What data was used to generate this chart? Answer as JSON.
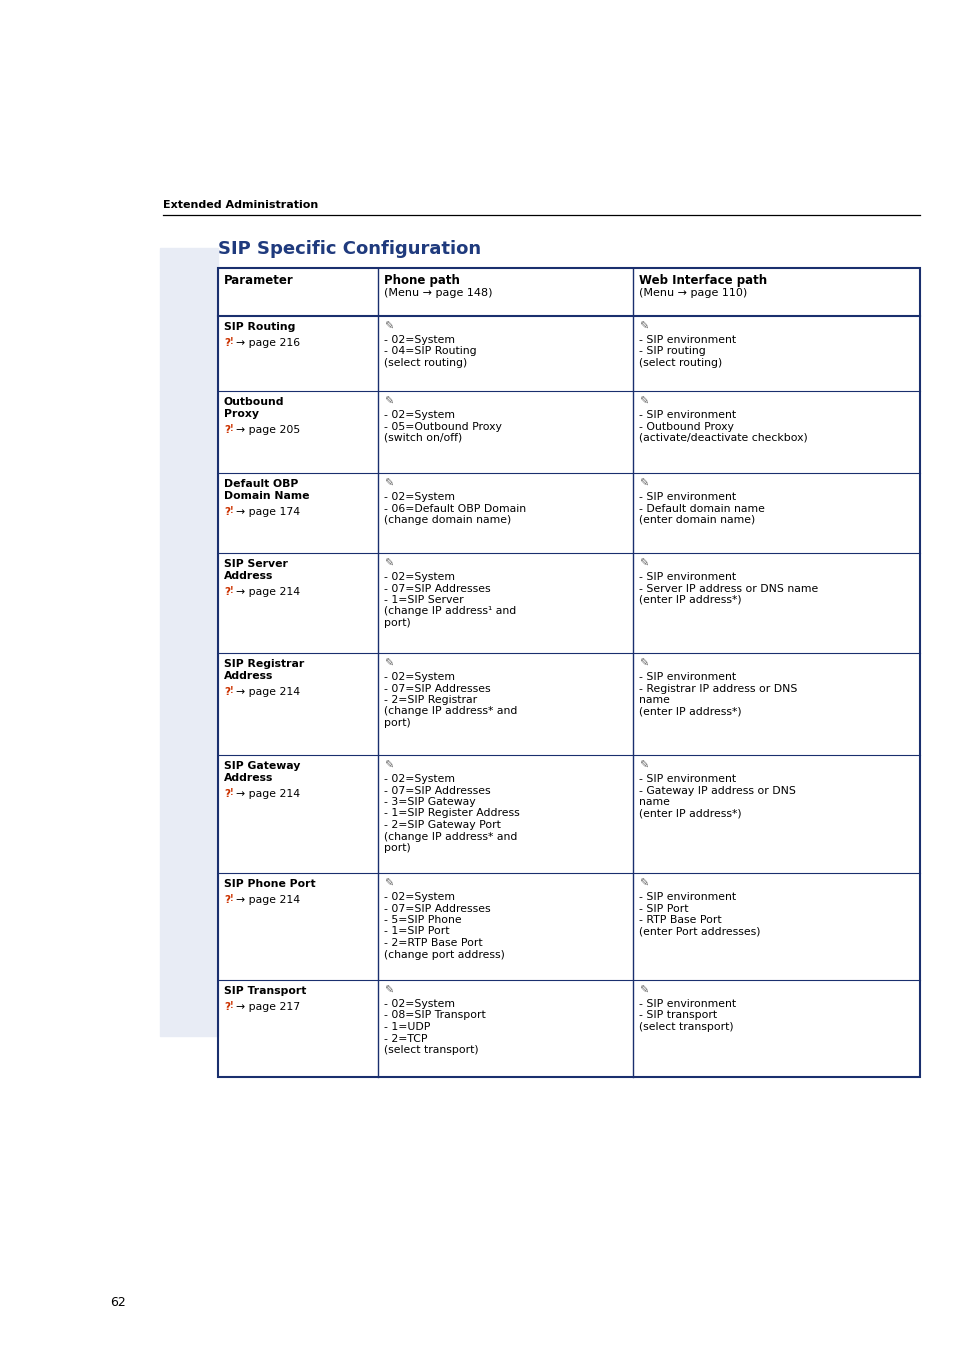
{
  "page_bg": "#ffffff",
  "left_bar_color": "#e8ecf5",
  "section_title": "SIP Specific Configuration",
  "section_title_color": "#1f3a7d",
  "header_label": "Extended Administration",
  "page_number": "62",
  "table_border_color": "#1a2f6e",
  "rows": [
    {
      "param_bold": "SIP Routing",
      "param_page": "→ page 216",
      "phone": "- 02=System\n- 04=SIP Routing\n(select routing)",
      "web": "- SIP environment\n- SIP routing\n(select routing)"
    },
    {
      "param_bold": "Outbound\nProxy",
      "param_page": "→ page 205",
      "phone": "- 02=System\n- 05=Outbound Proxy\n(switch on/off)",
      "web": "- SIP environment\n- Outbound Proxy\n(activate/deactivate checkbox)"
    },
    {
      "param_bold": "Default OBP\nDomain Name",
      "param_page": "→ page 174",
      "phone": "- 02=System\n- 06=Default OBP Domain\n(change domain name)",
      "web": "- SIP environment\n- Default domain name\n(enter domain name)"
    },
    {
      "param_bold": "SIP Server\nAddress",
      "param_page": "→ page 214",
      "phone": "- 02=System\n- 07=SIP Addresses\n- 1=SIP Server\n(change IP address¹ and\nport)",
      "web": "- SIP environment\n- Server IP address or DNS name\n(enter IP address*)"
    },
    {
      "param_bold": "SIP Registrar\nAddress",
      "param_page": "→ page 214",
      "phone": "- 02=System\n- 07=SIP Addresses\n- 2=SIP Registrar\n(change IP address* and\nport)",
      "web": "- SIP environment\n- Registrar IP address or DNS\nname\n(enter IP address*)"
    },
    {
      "param_bold": "SIP Gateway\nAddress",
      "param_page": "→ page 214",
      "phone": "- 02=System\n- 07=SIP Addresses\n- 3=SIP Gateway\n- 1=SIP Register Address\n- 2=SIP Gateway Port\n(change IP address* and\nport)",
      "web": "- SIP environment\n- Gateway IP address or DNS\nname\n(enter IP address*)"
    },
    {
      "param_bold": "SIP Phone Port",
      "param_page": "→ page 214",
      "phone": "- 02=System\n- 07=SIP Addresses\n- 5=SIP Phone\n- 1=SIP Port\n- 2=RTP Base Port\n(change port address)",
      "web": "- SIP environment\n- SIP Port\n- RTP Base Port\n(enter Port addresses)"
    },
    {
      "param_bold": "SIP Transport",
      "param_page": "→ page 217",
      "phone": "- 02=System\n- 08=SIP Transport\n- 1=UDP\n- 2=TCP\n(select transport)",
      "web": "- SIP environment\n- SIP transport\n(select transport)"
    }
  ]
}
